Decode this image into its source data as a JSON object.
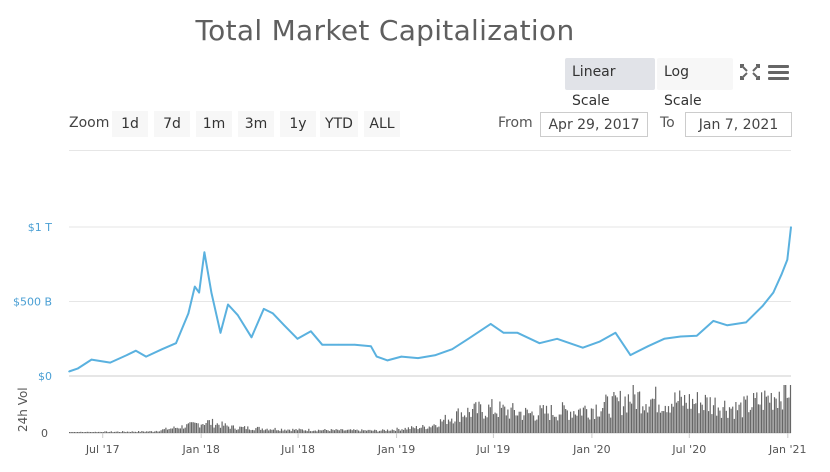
{
  "title": "Total Market Capitalization",
  "controls": {
    "linear_label": "Linear Scale",
    "log_label": "Log Scale",
    "active_scale": "linear",
    "zoom_label": "Zoom",
    "zoom_buttons": [
      "1d",
      "7d",
      "1m",
      "3m",
      "1y",
      "YTD",
      "ALL"
    ],
    "from_label": "From",
    "from_value": "Apr 29, 2017",
    "to_label": "To",
    "to_value": "Jan 7, 2021",
    "icons": [
      "fullscreen-icon",
      "menu-icon"
    ]
  },
  "colors": {
    "line": "#5ab1df",
    "volume": "#666666",
    "axis_label": "#4a9fd4",
    "selected_button": "#e1e3e8"
  },
  "chart_data": {
    "type": "line",
    "title": "Total Market Capitalization",
    "ylabel": "",
    "yticks": [
      "$0",
      "$500 B",
      "$1 T"
    ],
    "ylim": [
      0,
      1000
    ],
    "xticks": [
      "Jul '17",
      "Jan '18",
      "Jul '18",
      "Jan '19",
      "Jul '19",
      "Jan '20",
      "Jul '20",
      "Jan '21"
    ],
    "xtick_dates": [
      "2017-07-01",
      "2018-01-01",
      "2018-07-01",
      "2019-01-01",
      "2019-07-01",
      "2020-01-01",
      "2020-07-01",
      "2021-01-01"
    ],
    "xlim": [
      "2017-04-29",
      "2021-01-07"
    ],
    "grid": true,
    "series": [
      {
        "values_unit": "billion USD",
        "points": [
          [
            "2017-04-29",
            30
          ],
          [
            "2017-05-15",
            50
          ],
          [
            "2017-06-10",
            110
          ],
          [
            "2017-07-15",
            90
          ],
          [
            "2017-08-15",
            140
          ],
          [
            "2017-09-01",
            170
          ],
          [
            "2017-09-20",
            130
          ],
          [
            "2017-10-20",
            180
          ],
          [
            "2017-11-15",
            220
          ],
          [
            "2017-12-08",
            420
          ],
          [
            "2017-12-20",
            600
          ],
          [
            "2017-12-28",
            560
          ],
          [
            "2018-01-07",
            830
          ],
          [
            "2018-01-20",
            560
          ],
          [
            "2018-02-06",
            290
          ],
          [
            "2018-02-20",
            480
          ],
          [
            "2018-03-10",
            410
          ],
          [
            "2018-04-05",
            260
          ],
          [
            "2018-04-28",
            450
          ],
          [
            "2018-05-15",
            420
          ],
          [
            "2018-06-05",
            340
          ],
          [
            "2018-06-30",
            250
          ],
          [
            "2018-07-25",
            300
          ],
          [
            "2018-08-15",
            210
          ],
          [
            "2018-09-15",
            210
          ],
          [
            "2018-10-15",
            210
          ],
          [
            "2018-11-14",
            200
          ],
          [
            "2018-11-25",
            130
          ],
          [
            "2018-12-15",
            105
          ],
          [
            "2019-01-10",
            130
          ],
          [
            "2019-02-10",
            120
          ],
          [
            "2019-03-15",
            140
          ],
          [
            "2019-04-15",
            180
          ],
          [
            "2019-05-15",
            250
          ],
          [
            "2019-06-26",
            350
          ],
          [
            "2019-07-20",
            290
          ],
          [
            "2019-08-15",
            290
          ],
          [
            "2019-09-25",
            220
          ],
          [
            "2019-10-28",
            250
          ],
          [
            "2019-12-15",
            190
          ],
          [
            "2020-01-15",
            230
          ],
          [
            "2020-02-14",
            290
          ],
          [
            "2020-03-13",
            140
          ],
          [
            "2020-04-15",
            200
          ],
          [
            "2020-05-15",
            250
          ],
          [
            "2020-06-15",
            265
          ],
          [
            "2020-07-15",
            270
          ],
          [
            "2020-08-15",
            370
          ],
          [
            "2020-09-10",
            340
          ],
          [
            "2020-10-15",
            360
          ],
          [
            "2020-11-15",
            470
          ],
          [
            "2020-12-05",
            560
          ],
          [
            "2020-12-20",
            680
          ],
          [
            "2020-12-31",
            780
          ],
          [
            "2021-01-07",
            1000
          ]
        ]
      }
    ],
    "volume": {
      "label": "24h Vol",
      "yticks": [
        "0"
      ],
      "points": [
        [
          "2017-04-29",
          1
        ],
        [
          "2017-10-01",
          2
        ],
        [
          "2017-12-15",
          10
        ],
        [
          "2018-01-10",
          14
        ],
        [
          "2018-03-01",
          7
        ],
        [
          "2018-07-01",
          4
        ],
        [
          "2018-12-01",
          3
        ],
        [
          "2019-03-01",
          8
        ],
        [
          "2019-05-01",
          25
        ],
        [
          "2019-06-26",
          30
        ],
        [
          "2019-09-01",
          24
        ],
        [
          "2019-12-01",
          28
        ],
        [
          "2020-02-15",
          36
        ],
        [
          "2020-03-13",
          45
        ],
        [
          "2020-05-15",
          40
        ],
        [
          "2020-08-01",
          38
        ],
        [
          "2020-10-01",
          30
        ],
        [
          "2020-12-01",
          45
        ],
        [
          "2021-01-07",
          60
        ]
      ]
    }
  }
}
